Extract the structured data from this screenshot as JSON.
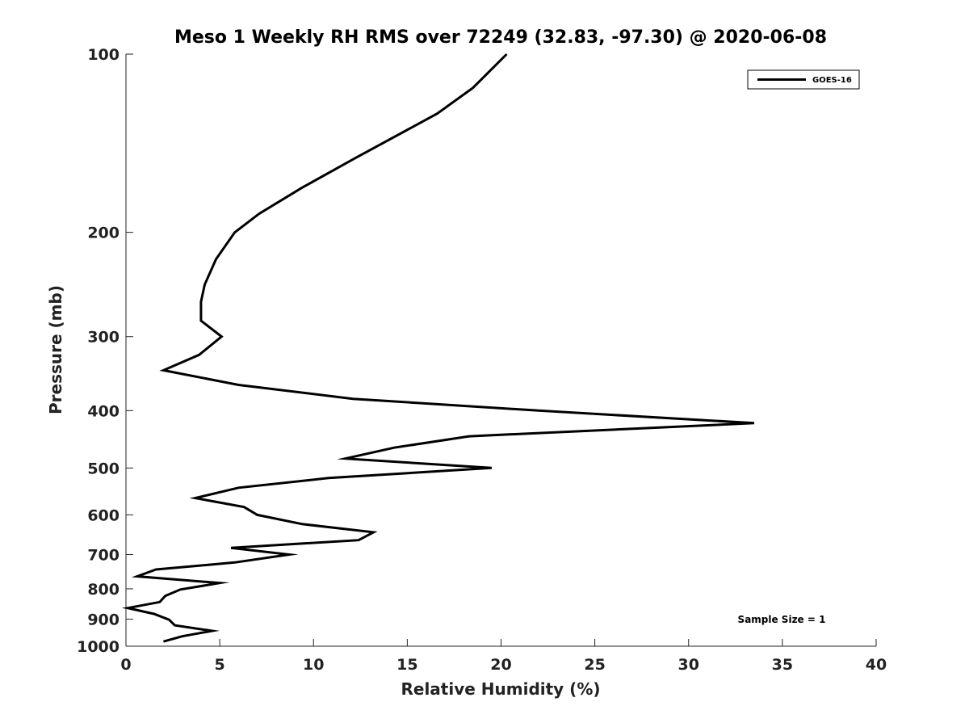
{
  "chart_data": {
    "type": "line",
    "title": "Meso 1 Weekly RH RMS over 72249 (32.83, -97.30) @ 2020-06-08",
    "xlabel": "Relative Humidity (%)",
    "ylabel": "Pressure (mb)",
    "xlim": [
      0,
      40
    ],
    "ylim": [
      100,
      1000
    ],
    "y_scale": "log",
    "y_reversed": true,
    "x_ticks": [
      0,
      5,
      10,
      15,
      20,
      25,
      30,
      35,
      40
    ],
    "y_ticks": [
      100,
      200,
      300,
      400,
      500,
      600,
      700,
      800,
      900,
      1000
    ],
    "grid": false,
    "legend_position": "top-right",
    "annotation": "Sample Size = 1",
    "series": [
      {
        "name": "GOES-16",
        "color": "#000000",
        "points": [
          {
            "x": 20.3,
            "p": 100
          },
          {
            "x": 18.5,
            "p": 114
          },
          {
            "x": 16.6,
            "p": 126
          },
          {
            "x": 12.2,
            "p": 150
          },
          {
            "x": 9.4,
            "p": 168
          },
          {
            "x": 7.1,
            "p": 186
          },
          {
            "x": 5.8,
            "p": 200
          },
          {
            "x": 4.8,
            "p": 222
          },
          {
            "x": 4.2,
            "p": 245
          },
          {
            "x": 4.0,
            "p": 262
          },
          {
            "x": 4.0,
            "p": 282
          },
          {
            "x": 5.1,
            "p": 300
          },
          {
            "x": 3.9,
            "p": 322
          },
          {
            "x": 2.0,
            "p": 342
          },
          {
            "x": 6.0,
            "p": 362
          },
          {
            "x": 12.1,
            "p": 382
          },
          {
            "x": 22.0,
            "p": 400
          },
          {
            "x": 33.5,
            "p": 420
          },
          {
            "x": 18.3,
            "p": 442
          },
          {
            "x": 14.3,
            "p": 462
          },
          {
            "x": 11.7,
            "p": 482
          },
          {
            "x": 19.5,
            "p": 500
          },
          {
            "x": 10.8,
            "p": 520
          },
          {
            "x": 6.0,
            "p": 540
          },
          {
            "x": 3.7,
            "p": 562
          },
          {
            "x": 6.3,
            "p": 582
          },
          {
            "x": 7.0,
            "p": 600
          },
          {
            "x": 9.4,
            "p": 622
          },
          {
            "x": 13.2,
            "p": 642
          },
          {
            "x": 12.4,
            "p": 662
          },
          {
            "x": 5.6,
            "p": 682
          },
          {
            "x": 8.7,
            "p": 700
          },
          {
            "x": 5.8,
            "p": 722
          },
          {
            "x": 1.6,
            "p": 742
          },
          {
            "x": 0.6,
            "p": 762
          },
          {
            "x": 5.0,
            "p": 782
          },
          {
            "x": 2.9,
            "p": 802
          },
          {
            "x": 2.1,
            "p": 822
          },
          {
            "x": 1.8,
            "p": 842
          },
          {
            "x": 0.1,
            "p": 862
          },
          {
            "x": 1.5,
            "p": 882
          },
          {
            "x": 2.3,
            "p": 902
          },
          {
            "x": 2.6,
            "p": 922
          },
          {
            "x": 4.6,
            "p": 942
          },
          {
            "x": 3.0,
            "p": 962
          },
          {
            "x": 2.0,
            "p": 982
          }
        ]
      }
    ]
  }
}
